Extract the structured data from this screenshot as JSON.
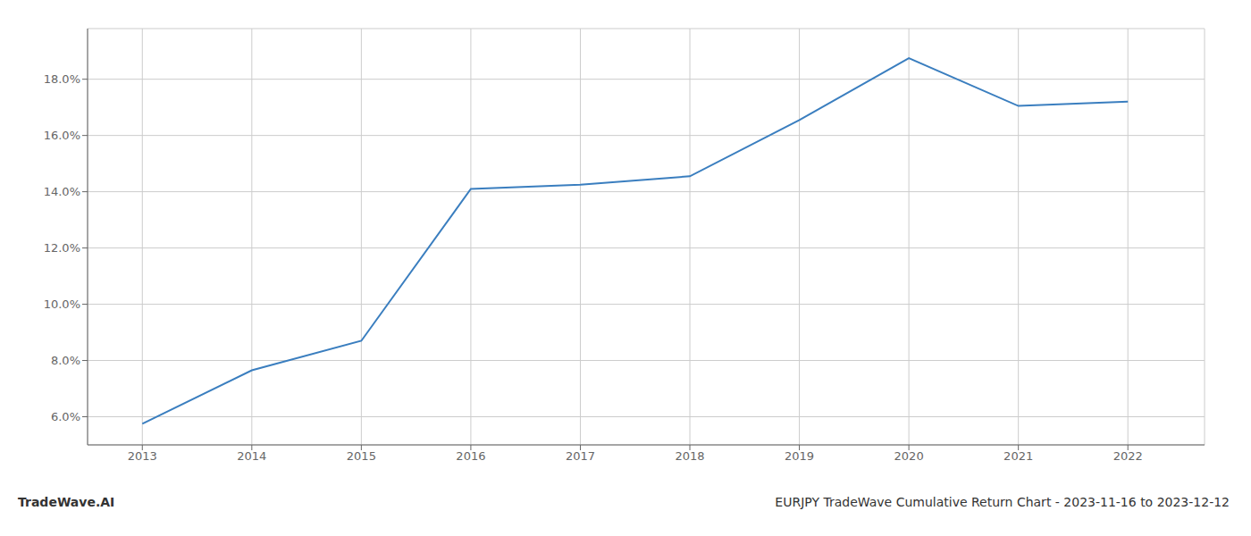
{
  "chart_data": {
    "type": "line",
    "x": [
      2013,
      2014,
      2015,
      2016,
      2017,
      2018,
      2019,
      2020,
      2021,
      2022
    ],
    "values": [
      5.75,
      7.65,
      8.7,
      14.1,
      14.25,
      14.55,
      16.55,
      18.75,
      17.05,
      17.2
    ],
    "color": "#3a7ebf",
    "xlim": [
      2012.5,
      2022.7
    ],
    "xticks": [
      2013,
      2014,
      2015,
      2016,
      2017,
      2018,
      2019,
      2020,
      2021,
      2022
    ],
    "ylim": [
      5.0,
      19.8
    ],
    "yticks": [
      {
        "value": 6.0,
        "label": "6.0%"
      },
      {
        "value": 8.0,
        "label": "8.0%"
      },
      {
        "value": 10.0,
        "label": "10.0%"
      },
      {
        "value": 12.0,
        "label": "12.0%"
      },
      {
        "value": 14.0,
        "label": "14.0%"
      },
      {
        "value": 16.0,
        "label": "16.0%"
      },
      {
        "value": 18.0,
        "label": "18.0%"
      }
    ],
    "grid": true,
    "annotations": [
      "TradeWave.AI",
      "EURJPY TradeWave Cumulative Return Chart - 2023-11-16 to 2023-12-12"
    ]
  }
}
